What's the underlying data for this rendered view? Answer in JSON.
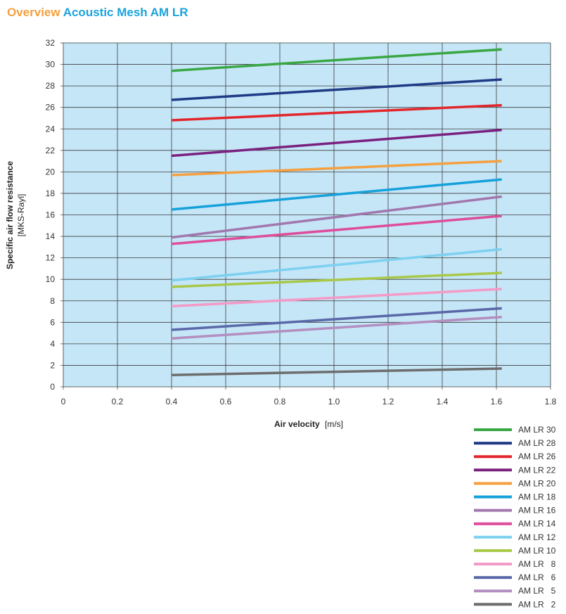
{
  "header": {
    "title_part1": "Overview",
    "title_part2": "Acoustic Mesh AM LR"
  },
  "colors": {
    "title_part1": "#f4a040",
    "title_part2": "#1ba3dc",
    "plot_background": "#c5e6f7"
  },
  "chart_data": {
    "type": "line",
    "xlabel_bold": "Air velocity",
    "xlabel_unit": "[m/s]",
    "ylabel_bold": "Specific air flow resistance",
    "ylabel_unit": "[MKS-Rayl]",
    "xlim": [
      0,
      1.8
    ],
    "ylim": [
      0,
      32
    ],
    "x_ticks": [
      "0",
      "0.2",
      "0.4",
      "0.6",
      "0.8",
      "1.0",
      "1.2",
      "1.4",
      "1.6",
      "1.8"
    ],
    "y_ticks": [
      "0",
      "2",
      "4",
      "6",
      "8",
      "10",
      "12",
      "14",
      "16",
      "18",
      "20",
      "22",
      "24",
      "26",
      "28",
      "30",
      "32"
    ],
    "grid": true,
    "legend_position": "bottom-right",
    "series": [
      {
        "name": "AM LR 30",
        "color": "#3aa745",
        "x": [
          0.4,
          1.62
        ],
        "y": [
          29.4,
          31.4
        ]
      },
      {
        "name": "AM LR 28",
        "color": "#1f3b86",
        "x": [
          0.4,
          1.62
        ],
        "y": [
          26.7,
          28.6
        ]
      },
      {
        "name": "AM LR 26",
        "color": "#e2262b",
        "x": [
          0.4,
          1.62
        ],
        "y": [
          24.8,
          26.2
        ]
      },
      {
        "name": "AM LR 22",
        "color": "#7a2180",
        "x": [
          0.4,
          1.62
        ],
        "y": [
          21.5,
          23.9
        ]
      },
      {
        "name": "AM LR 20",
        "color": "#f4a040",
        "x": [
          0.4,
          1.62
        ],
        "y": [
          19.7,
          21.0
        ]
      },
      {
        "name": "AM LR 18",
        "color": "#16a1db",
        "x": [
          0.4,
          1.62
        ],
        "y": [
          16.5,
          19.3
        ]
      },
      {
        "name": "AM LR 16",
        "color": "#a177ad",
        "x": [
          0.4,
          1.62
        ],
        "y": [
          13.9,
          17.7
        ]
      },
      {
        "name": "AM LR 14",
        "color": "#dd4d9c",
        "x": [
          0.4,
          1.62
        ],
        "y": [
          13.3,
          15.9
        ]
      },
      {
        "name": "AM LR 12",
        "color": "#7dd0f0",
        "x": [
          0.4,
          1.62
        ],
        "y": [
          9.9,
          12.8
        ]
      },
      {
        "name": "AM LR 10",
        "color": "#a9c84a",
        "x": [
          0.4,
          1.62
        ],
        "y": [
          9.3,
          10.6
        ]
      },
      {
        "name": "AM LR   8",
        "color": "#f39ac6",
        "x": [
          0.4,
          1.62
        ],
        "y": [
          7.5,
          9.1
        ]
      },
      {
        "name": "AM LR   6",
        "color": "#5a68a8",
        "x": [
          0.4,
          1.62
        ],
        "y": [
          5.3,
          7.3
        ]
      },
      {
        "name": "AM LR   5",
        "color": "#b38ec0",
        "x": [
          0.4,
          1.62
        ],
        "y": [
          4.5,
          6.5
        ]
      },
      {
        "name": "AM LR   2",
        "color": "#6d6d6d",
        "x": [
          0.4,
          1.62
        ],
        "y": [
          1.1,
          1.7
        ]
      }
    ]
  }
}
